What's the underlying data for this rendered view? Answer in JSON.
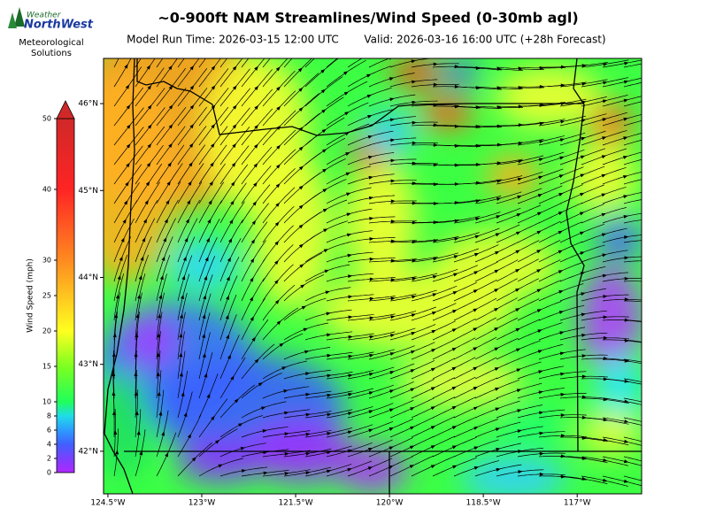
{
  "header": {
    "logo_top": "Weather",
    "logo_brand": "NorthWest",
    "logo_sub": "Meteorological Solutions",
    "title": "~0-900ft NAM Streamlines/Wind Speed (0-30mb agl)",
    "model_run": "Model Run Time: 2026-03-15 12:00 UTC",
    "valid": "Valid: 2026-03-16 16:00 UTC  (+28h Forecast)"
  },
  "map": {
    "lon_range": [
      -124.57,
      -115.97
    ],
    "lat_range": [
      46.52,
      41.51
    ],
    "lon_ticks": [
      {
        "value": -124.5,
        "label": "124.5°W"
      },
      {
        "value": -123,
        "label": "123°W"
      },
      {
        "value": -121.5,
        "label": "121.5°W"
      },
      {
        "value": -120,
        "label": "120°W"
      },
      {
        "value": -118.5,
        "label": "118.5°W"
      },
      {
        "value": -117,
        "label": "117°W"
      }
    ],
    "lat_ticks": [
      {
        "value": 46,
        "label": "46°N"
      },
      {
        "value": 45,
        "label": "45°N"
      },
      {
        "value": 44,
        "label": "44°N"
      },
      {
        "value": 43,
        "label": "43°N"
      },
      {
        "value": 42,
        "label": "42°N"
      }
    ]
  },
  "colorbar": {
    "label": "Wind Speed (mph)",
    "range": [
      0,
      50
    ],
    "ticks": [
      0,
      2,
      4,
      6,
      8,
      10,
      15,
      20,
      25,
      30,
      40,
      50
    ],
    "colors": [
      "#b028ff",
      "#7a40ff",
      "#4060ff",
      "#2c9cff",
      "#20dce8",
      "#20ff5a",
      "#7cff20",
      "#ffff20",
      "#ffc420",
      "#ff8a20",
      "#ff2424",
      "#d02828"
    ]
  }
}
